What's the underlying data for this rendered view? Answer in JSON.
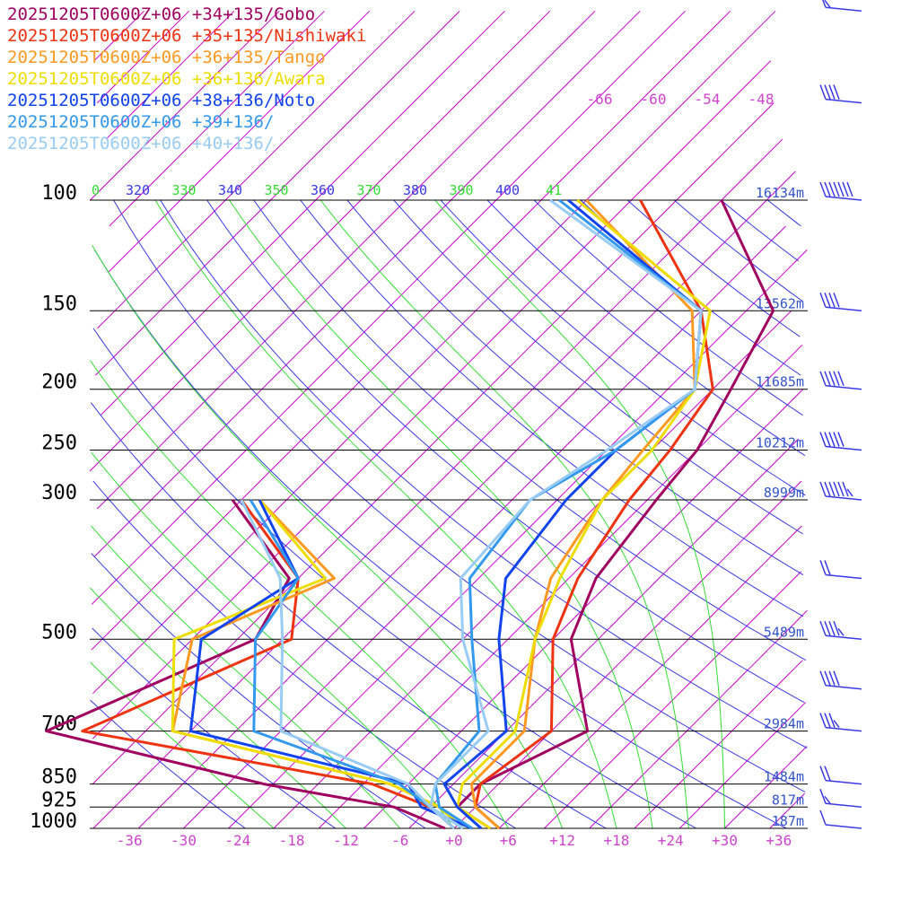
{
  "colors": {
    "isobar": "#000000",
    "isotherm": "#cc00cc",
    "dry_adiabat": "#3a3ae6",
    "moist_adiabat": "#33dd33",
    "height_label": "#3355cc",
    "temp_axis": "#cc44cc"
  },
  "legend": [
    {
      "label": "20251205T0600Z+06 +34+135/Gobo",
      "color": "#a0005f"
    },
    {
      "label": "20251205T0600Z+06 +35+135/Nishiwaki",
      "color": "#ee3311"
    },
    {
      "label": "20251205T0600Z+06 +36+135/Tango",
      "color": "#ff9922"
    },
    {
      "label": "20251205T0600Z+06 +36+136/Awara",
      "color": "#eedd00"
    },
    {
      "label": "20251205T0600Z+06 +38+136/Noto",
      "color": "#1144ee"
    },
    {
      "label": "20251205T0600Z+06 +39+136/",
      "color": "#3399ee"
    },
    {
      "label": "20251205T0600Z+06 +40+136/",
      "color": "#99ccf5"
    }
  ],
  "chart_data": {
    "type": "line",
    "title": "",
    "pressure_levels": [
      {
        "p": 100,
        "label": "100",
        "height": "16134m"
      },
      {
        "p": 150,
        "label": "150",
        "height": "13562m"
      },
      {
        "p": 200,
        "label": "200",
        "height": "11685m"
      },
      {
        "p": 250,
        "label": "250",
        "height": "10212m"
      },
      {
        "p": 300,
        "label": "300",
        "height": "8999m"
      },
      {
        "p": 500,
        "label": "500",
        "height": "5489m"
      },
      {
        "p": 700,
        "label": "700",
        "height": "2984m"
      },
      {
        "p": 850,
        "label": "850",
        "height": "1484m"
      },
      {
        "p": 925,
        "label": "925",
        "height": "817m"
      },
      {
        "p": 1000,
        "label": "1000",
        "height": "187m"
      }
    ],
    "temperature_ticks": [
      "-36",
      "-30",
      "-24",
      "-18",
      "-12",
      "-6",
      "+0",
      "+6",
      "+12",
      "+18",
      "+24",
      "+30",
      "+36"
    ],
    "upper_temperature_ticks": [
      "-66",
      "-60",
      "-54",
      "-48"
    ],
    "theta_labels": [
      "0",
      "320",
      "330",
      "340",
      "350",
      "360",
      "370",
      "380",
      "390",
      "400",
      "41"
    ],
    "xlim": [
      -40,
      40
    ],
    "ylim_hpa": [
      1000,
      100
    ],
    "series": [
      {
        "name": "20251205T0600Z+06 +34+135/Gobo",
        "temperature": [
          [
            1000,
            4
          ],
          [
            925,
            -2
          ],
          [
            850,
            -2
          ],
          [
            700,
            4
          ],
          [
            500,
            -8
          ],
          [
            400,
            -12
          ],
          [
            300,
            -14
          ],
          [
            250,
            -15
          ],
          [
            200,
            -18
          ],
          [
            150,
            -22
          ],
          [
            100,
            -40
          ]
        ],
        "dewpoint": [
          [
            1000,
            -1
          ],
          [
            925,
            -9
          ],
          [
            850,
            -26
          ],
          [
            700,
            -56
          ],
          [
            500,
            -43
          ],
          [
            400,
            -46
          ],
          [
            300,
            -61
          ]
        ]
      },
      {
        "name": "20251205T0600Z+06 +35+135/Nishiwaki",
        "temperature": [
          [
            1000,
            5
          ],
          [
            925,
            0
          ],
          [
            850,
            -2
          ],
          [
            700,
            0
          ],
          [
            500,
            -10
          ],
          [
            400,
            -14
          ],
          [
            300,
            -17
          ],
          [
            250,
            -18
          ],
          [
            200,
            -20
          ],
          [
            150,
            -30
          ],
          [
            100,
            -49
          ]
        ],
        "dewpoint": [
          [
            1000,
            0
          ],
          [
            925,
            -5
          ],
          [
            850,
            -14
          ],
          [
            700,
            -52
          ],
          [
            500,
            -39
          ],
          [
            400,
            -45
          ],
          [
            300,
            -60
          ]
        ]
      },
      {
        "name": "20251205T0600Z+06 +36+135/Tango",
        "temperature": [
          [
            1000,
            5
          ],
          [
            925,
            0
          ],
          [
            850,
            -3
          ],
          [
            700,
            -3
          ],
          [
            500,
            -12
          ],
          [
            400,
            -17
          ],
          [
            300,
            -20
          ],
          [
            250,
            -21
          ],
          [
            200,
            -22
          ],
          [
            150,
            -31
          ],
          [
            100,
            -55
          ]
        ],
        "dewpoint": [
          [
            1000,
            1
          ],
          [
            925,
            -4
          ],
          [
            850,
            -12
          ],
          [
            700,
            -42
          ],
          [
            500,
            -50
          ],
          [
            400,
            -41
          ],
          [
            300,
            -58
          ]
        ]
      },
      {
        "name": "20251205T0600Z+06 +36+136/Awara",
        "temperature": [
          [
            1000,
            4
          ],
          [
            925,
            -2
          ],
          [
            850,
            -4
          ],
          [
            700,
            -4
          ],
          [
            500,
            -12
          ],
          [
            400,
            -16
          ],
          [
            300,
            -20
          ],
          [
            250,
            -20
          ],
          [
            200,
            -22
          ],
          [
            150,
            -29
          ],
          [
            100,
            -56
          ]
        ],
        "dewpoint": [
          [
            1000,
            1
          ],
          [
            925,
            -4
          ],
          [
            850,
            -12
          ],
          [
            700,
            -42
          ],
          [
            500,
            -52
          ],
          [
            400,
            -42
          ],
          [
            300,
            -58
          ]
        ]
      },
      {
        "name": "20251205T0600Z+06 +38+136/Noto",
        "temperature": [
          [
            1000,
            3
          ],
          [
            925,
            -2
          ],
          [
            850,
            -6
          ],
          [
            700,
            -5
          ],
          [
            500,
            -16
          ],
          [
            400,
            -22
          ],
          [
            300,
            -24
          ],
          [
            250,
            -24
          ],
          [
            200,
            -22
          ],
          [
            150,
            -30
          ],
          [
            100,
            -57
          ]
        ],
        "dewpoint": [
          [
            1000,
            2
          ],
          [
            925,
            -6
          ],
          [
            850,
            -10
          ],
          [
            700,
            -40
          ],
          [
            500,
            -49
          ],
          [
            400,
            -45
          ],
          [
            300,
            -58
          ]
        ]
      },
      {
        "name": "20251205T0600Z+06 +39+136/",
        "temperature": [
          [
            1000,
            2
          ],
          [
            925,
            -4
          ],
          [
            850,
            -7
          ],
          [
            700,
            -8
          ],
          [
            500,
            -19
          ],
          [
            400,
            -26
          ],
          [
            300,
            -28
          ],
          [
            250,
            -24
          ],
          [
            200,
            -22
          ],
          [
            150,
            -30
          ],
          [
            100,
            -58
          ]
        ],
        "dewpoint": [
          [
            1000,
            1
          ],
          [
            925,
            -5
          ],
          [
            850,
            -11
          ],
          [
            700,
            -33
          ],
          [
            500,
            -43
          ],
          [
            400,
            -45
          ],
          [
            300,
            -59
          ]
        ]
      },
      {
        "name": "20251205T0600Z+06 +40+136/",
        "temperature": [
          [
            1000,
            1
          ],
          [
            925,
            -5
          ],
          [
            850,
            -7
          ],
          [
            700,
            -7
          ],
          [
            500,
            -20
          ],
          [
            400,
            -27
          ],
          [
            300,
            -28
          ],
          [
            250,
            -25
          ],
          [
            200,
            -22
          ],
          [
            150,
            -30
          ],
          [
            100,
            -59
          ]
        ],
        "dewpoint": [
          [
            1000,
            0
          ],
          [
            925,
            -5
          ],
          [
            850,
            -10
          ],
          [
            700,
            -30
          ],
          [
            500,
            -40
          ],
          [
            400,
            -47
          ],
          [
            300,
            -60
          ]
        ]
      }
    ],
    "wind_barbs": [
      {
        "p": 1000,
        "speed_kt": 10
      },
      {
        "p": 925,
        "speed_kt": 15
      },
      {
        "p": 850,
        "speed_kt": 20
      },
      {
        "p": 700,
        "speed_kt": 35
      },
      {
        "p": 600,
        "speed_kt": 40
      },
      {
        "p": 500,
        "speed_kt": 45
      },
      {
        "p": 400,
        "speed_kt": 20
      },
      {
        "p": 300,
        "speed_kt": 65
      },
      {
        "p": 250,
        "speed_kt": 50
      },
      {
        "p": 200,
        "speed_kt": 50
      },
      {
        "p": 150,
        "speed_kt": 40
      },
      {
        "p": 100,
        "speed_kt": 70
      },
      {
        "p": 70,
        "speed_kt": 40
      },
      {
        "p": 50,
        "speed_kt": 15
      }
    ]
  }
}
